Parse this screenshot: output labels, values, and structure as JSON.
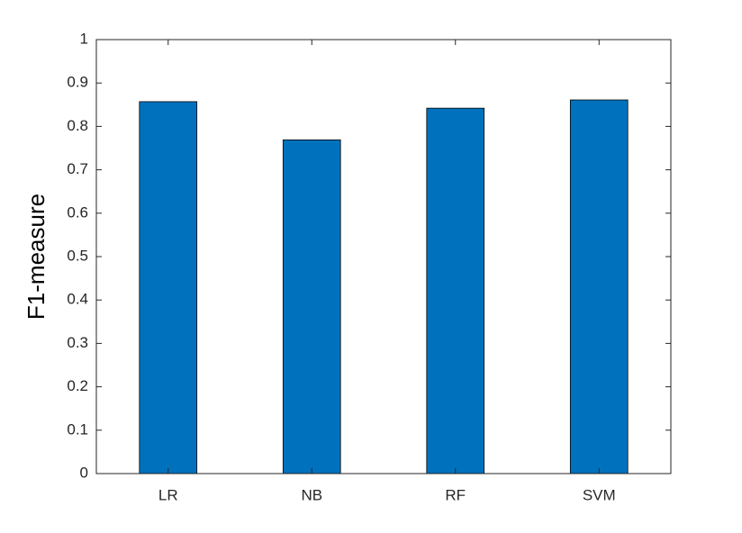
{
  "chart_data": {
    "type": "bar",
    "y_label": "F1-measure",
    "categories": [
      "LR",
      "NB",
      "RF",
      "SVM"
    ],
    "values": [
      0.857,
      0.769,
      0.842,
      0.861
    ],
    "color": "#0072bd",
    "ylim": [
      0,
      1
    ],
    "yticks": [
      0,
      0.1,
      0.2,
      0.3,
      0.4,
      0.5,
      0.6,
      0.7,
      0.8,
      0.9,
      1
    ],
    "grid": false
  }
}
